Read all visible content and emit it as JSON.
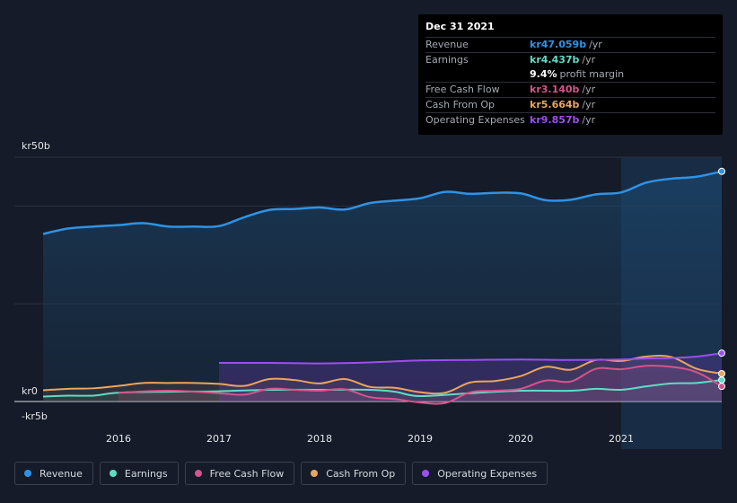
{
  "tooltip": {
    "date": "Dec 31 2021",
    "rows": [
      {
        "label": "Revenue",
        "value": "kr47.059b",
        "unit": "/yr",
        "color": "#2e93e6"
      },
      {
        "label": "Earnings",
        "value": "kr4.437b",
        "unit": "/yr",
        "color": "#5fdcc4"
      },
      {
        "label": "",
        "value": "9.4%",
        "unit": "profit margin",
        "color": "#ffffff"
      },
      {
        "label": "Free Cash Flow",
        "value": "kr3.140b",
        "unit": "/yr",
        "color": "#d6538c"
      },
      {
        "label": "Cash From Op",
        "value": "kr5.664b",
        "unit": "/yr",
        "color": "#e9a55f"
      },
      {
        "label": "Operating Expenses",
        "value": "kr9.857b",
        "unit": "/yr",
        "color": "#9d4ef0"
      }
    ]
  },
  "legend": [
    {
      "label": "Revenue",
      "color": "#2e93e6"
    },
    {
      "label": "Earnings",
      "color": "#5fdcc4"
    },
    {
      "label": "Free Cash Flow",
      "color": "#d6538c"
    },
    {
      "label": "Cash From Op",
      "color": "#e9a55f"
    },
    {
      "label": "Operating Expenses",
      "color": "#9d4ef0"
    }
  ],
  "chart_data": {
    "type": "area",
    "y_tick_labels": [
      "kr50b",
      "kr0",
      "-kr5b"
    ],
    "y_ticks": [
      50,
      0,
      -5
    ],
    "ylim": [
      -5,
      50
    ],
    "xlim": [
      2015.25,
      2022.0
    ],
    "x_tick_labels": [
      "2016",
      "2017",
      "2018",
      "2019",
      "2020",
      "2021"
    ],
    "x_ticks": [
      2016,
      2017,
      2018,
      2019,
      2020,
      2021
    ],
    "highlight_start": 2021.0,
    "series": [
      {
        "name": "Revenue",
        "color": "#2e93e6",
        "x": [
          2015.25,
          2015.5,
          2015.75,
          2016.0,
          2016.25,
          2016.5,
          2016.75,
          2017.0,
          2017.25,
          2017.5,
          2017.75,
          2018.0,
          2018.25,
          2018.5,
          2018.75,
          2019.0,
          2019.25,
          2019.5,
          2019.75,
          2020.0,
          2020.25,
          2020.5,
          2020.75,
          2021.0,
          2021.25,
          2021.5,
          2021.75,
          2022.0
        ],
        "values": [
          34.3,
          35.4,
          35.8,
          36.1,
          36.5,
          35.8,
          35.8,
          35.9,
          37.7,
          39.2,
          39.4,
          39.7,
          39.3,
          40.6,
          41.1,
          41.6,
          42.9,
          42.5,
          42.7,
          42.6,
          41.2,
          41.3,
          42.4,
          42.8,
          44.8,
          45.6,
          46.0,
          47.1
        ]
      },
      {
        "name": "Earnings",
        "color": "#5fdcc4",
        "x": [
          2015.25,
          2015.5,
          2015.75,
          2016.0,
          2016.5,
          2017.0,
          2017.5,
          2018.0,
          2018.5,
          2018.75,
          2019.0,
          2019.5,
          2020.0,
          2020.5,
          2020.75,
          2021.0,
          2021.25,
          2021.5,
          2021.75,
          2022.0
        ],
        "values": [
          1.0,
          1.2,
          1.2,
          1.8,
          2.0,
          2.1,
          2.4,
          2.4,
          2.4,
          2.0,
          1.1,
          1.7,
          2.2,
          2.2,
          2.6,
          2.4,
          3.1,
          3.7,
          3.8,
          4.4
        ]
      },
      {
        "name": "Free Cash Flow",
        "color": "#d6538c",
        "x": [
          2016.0,
          2016.5,
          2017.0,
          2017.25,
          2017.5,
          2017.75,
          2018.0,
          2018.25,
          2018.5,
          2018.75,
          2019.0,
          2019.25,
          2019.5,
          2019.75,
          2020.0,
          2020.25,
          2020.5,
          2020.75,
          2021.0,
          2021.25,
          2021.5,
          2021.75,
          2022.0
        ],
        "values": [
          1.8,
          2.2,
          1.7,
          1.4,
          2.6,
          2.4,
          2.2,
          2.5,
          0.9,
          0.5,
          -0.2,
          -0.3,
          1.9,
          2.2,
          2.6,
          4.3,
          4.1,
          6.7,
          6.6,
          7.3,
          7.1,
          6.0,
          3.1
        ]
      },
      {
        "name": "Cash From Op",
        "color": "#e9a55f",
        "x": [
          2015.25,
          2015.5,
          2015.75,
          2016.0,
          2016.25,
          2016.5,
          2016.75,
          2017.0,
          2017.25,
          2017.5,
          2017.75,
          2018.0,
          2018.25,
          2018.5,
          2018.75,
          2019.0,
          2019.25,
          2019.5,
          2019.75,
          2020.0,
          2020.25,
          2020.5,
          2020.75,
          2021.0,
          2021.25,
          2021.5,
          2021.75,
          2022.0
        ],
        "values": [
          2.3,
          2.6,
          2.7,
          3.2,
          3.8,
          3.8,
          3.8,
          3.6,
          3.2,
          4.6,
          4.4,
          3.7,
          4.6,
          3.0,
          2.8,
          1.9,
          1.8,
          3.9,
          4.2,
          5.2,
          7.1,
          6.5,
          8.5,
          8.3,
          9.2,
          9.1,
          6.7,
          5.7
        ]
      },
      {
        "name": "Operating Expenses",
        "color": "#9d4ef0",
        "x": [
          2017.0,
          2017.5,
          2018.0,
          2018.5,
          2019.0,
          2019.5,
          2020.0,
          2020.5,
          2021.0,
          2021.25,
          2021.5,
          2021.75,
          2022.0
        ],
        "values": [
          7.9,
          7.9,
          7.8,
          8.0,
          8.4,
          8.5,
          8.6,
          8.5,
          8.6,
          8.8,
          8.9,
          9.2,
          9.9
        ]
      }
    ]
  }
}
